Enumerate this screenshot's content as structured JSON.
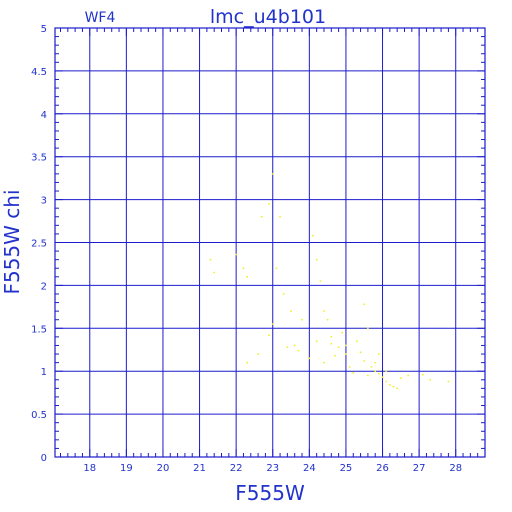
{
  "chart_data": {
    "type": "scatter",
    "title": "lmc_u4b101",
    "subtitle": "WF4",
    "xlabel": "F555W",
    "ylabel": "F555W chi",
    "xlim": [
      17.05,
      28.8
    ],
    "ylim": [
      0,
      5
    ],
    "grid": true,
    "x_major_ticks": [
      18,
      19,
      20,
      21,
      22,
      23,
      24,
      25,
      26,
      27,
      28
    ],
    "x_tick_labels": [
      "18",
      "19",
      "20",
      "21",
      "22",
      "23",
      "24",
      "25",
      "26",
      "27",
      "28"
    ],
    "y_major_ticks": [
      0,
      0.5,
      1,
      1.5,
      2,
      2.5,
      3,
      3.5,
      4,
      4.5,
      5
    ],
    "y_tick_labels": [
      "0",
      "0.5",
      "1",
      "1.5",
      "2",
      "2.5",
      "3",
      "3.5",
      "4",
      "4.5",
      "5"
    ],
    "colors": {
      "frame": "#1c1ccc",
      "text": "#2233cc",
      "series_blue": "#0b14d8",
      "series_yellow": "#f2ee1a"
    },
    "series": [
      {
        "color": "#f2ee1a",
        "marker": "dot",
        "points": [
          [
            21.3,
            2.3
          ],
          [
            21.4,
            2.15
          ],
          [
            22.0,
            2.36
          ],
          [
            22.2,
            2.2
          ],
          [
            22.3,
            2.1
          ],
          [
            22.7,
            2.8
          ],
          [
            22.9,
            2.95
          ],
          [
            23.0,
            3.3
          ],
          [
            23.1,
            2.2
          ],
          [
            23.2,
            2.8
          ],
          [
            23.3,
            1.9
          ],
          [
            23.5,
            1.7
          ],
          [
            23.8,
            1.6
          ],
          [
            24.1,
            2.58
          ],
          [
            24.2,
            2.3
          ],
          [
            24.3,
            2.05
          ],
          [
            24.4,
            1.7
          ],
          [
            24.5,
            1.6
          ],
          [
            24.6,
            1.4
          ],
          [
            25.5,
            1.78
          ],
          [
            25.6,
            1.5
          ],
          [
            23.0,
            1.55
          ],
          [
            22.9,
            1.42
          ],
          [
            23.6,
            1.3
          ],
          [
            23.7,
            1.24
          ],
          [
            24.0,
            1.15
          ],
          [
            24.4,
            1.1
          ],
          [
            24.6,
            1.32
          ],
          [
            24.9,
            1.45
          ],
          [
            25.0,
            1.2
          ],
          [
            25.1,
            1.05
          ],
          [
            25.3,
            1.35
          ],
          [
            25.4,
            1.22
          ],
          [
            25.5,
            1.12
          ],
          [
            25.7,
            1.05
          ],
          [
            25.8,
            1.0
          ],
          [
            25.9,
            0.97
          ],
          [
            26.0,
            0.93
          ],
          [
            26.1,
            0.88
          ],
          [
            26.2,
            0.84
          ],
          [
            26.3,
            0.82
          ],
          [
            26.4,
            0.8
          ],
          [
            25.8,
            1.1
          ],
          [
            25.9,
            1.2
          ],
          [
            26.1,
            1.0
          ],
          [
            24.8,
            1.28
          ],
          [
            24.7,
            1.18
          ],
          [
            25.2,
            0.98
          ],
          [
            25.6,
            0.95
          ],
          [
            26.5,
            0.92
          ],
          [
            27.1,
            0.96
          ],
          [
            27.3,
            0.9
          ],
          [
            27.8,
            0.88
          ],
          [
            26.7,
            0.95
          ],
          [
            22.3,
            1.1
          ],
          [
            22.6,
            1.2
          ],
          [
            23.4,
            1.28
          ],
          [
            24.2,
            1.35
          ],
          [
            25.0,
            1.3
          ]
        ]
      }
    ]
  }
}
